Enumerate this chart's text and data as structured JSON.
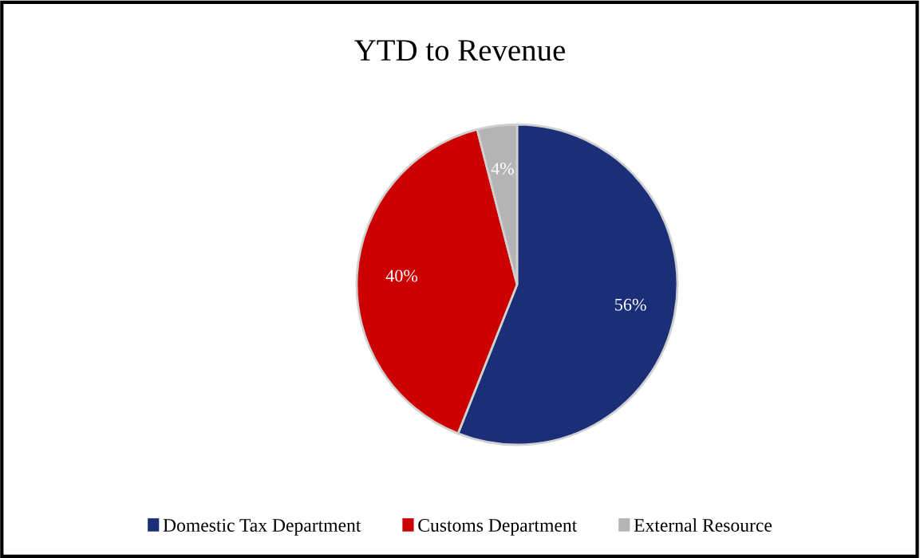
{
  "chart_data": {
    "type": "pie",
    "title": "YTD to Revenue",
    "categories": [
      "Domestic Tax Department",
      "Customs Department",
      "External Resource"
    ],
    "values": [
      56,
      40,
      4
    ],
    "colors": [
      "#1b2f78",
      "#cc0000",
      "#b4b4b4"
    ],
    "value_labels": [
      "56%",
      "40%",
      "4%"
    ],
    "legend": "bottom"
  }
}
